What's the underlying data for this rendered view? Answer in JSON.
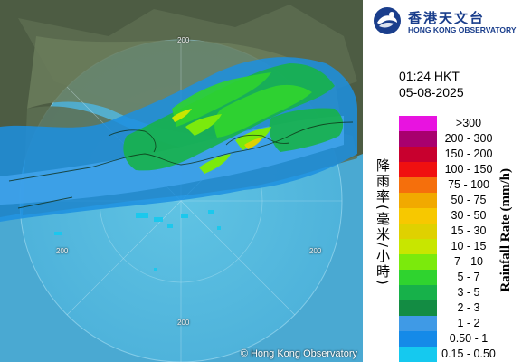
{
  "logo": {
    "name_cn": "香港天文台",
    "name_en": "HONG KONG OBSERVATORY",
    "emblem_icon": "hko-emblem-icon"
  },
  "timestamp": {
    "time": "01:24 HKT",
    "date": "05-08-2025"
  },
  "copyright": "© Hong Kong Observatory",
  "ring_label": "200",
  "legend": {
    "title_cn": "降雨率(毫米/小時)",
    "title_en": "Rainfall Rate (mm/h)",
    "items": [
      {
        "label": ">300",
        "color": "#e813e0"
      },
      {
        "label": "200 - 300",
        "color": "#a8006e"
      },
      {
        "label": "150 - 200",
        "color": "#c8002e"
      },
      {
        "label": "100 - 150",
        "color": "#f01010"
      },
      {
        "label": "75 - 100",
        "color": "#f56f0c"
      },
      {
        "label": "50 - 75",
        "color": "#f1a900"
      },
      {
        "label": "30 - 50",
        "color": "#f7c800"
      },
      {
        "label": "15 - 30",
        "color": "#dfd100"
      },
      {
        "label": "10 - 15",
        "color": "#c8e600"
      },
      {
        "label": "7 - 10",
        "color": "#7bea0c"
      },
      {
        "label": "5 - 7",
        "color": "#2fd32f"
      },
      {
        "label": "3 - 5",
        "color": "#17b14a"
      },
      {
        "label": "2 - 3",
        "color": "#138c43"
      },
      {
        "label": "1 - 2",
        "color": "#3f9ae6"
      },
      {
        "label": "0.50 - 1",
        "color": "#158ae8"
      },
      {
        "label": "0.15 - 0.50",
        "color": "#15c9ef"
      }
    ]
  }
}
